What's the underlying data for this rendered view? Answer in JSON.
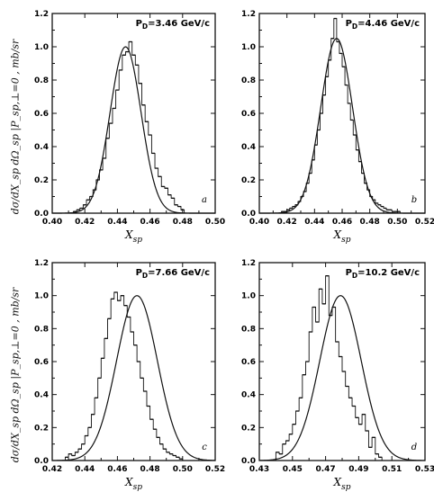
{
  "figure": {
    "y_axis_label_top": "dσ/dX_sp dΩ_sp |P_sp,⊥=0 , mb/sr",
    "y_axis_label_bottom": "dσ/dX_sp dΩ_sp |P_sp,⊥=0 , mb/sr"
  },
  "chart_data": [
    {
      "type": "histogram-with-fit",
      "panel_label": "a",
      "momentum_label": "P_D=3.46 GeV/c",
      "xlabel": "X_sp",
      "xlim": [
        0.4,
        0.5
      ],
      "ylim": [
        0.0,
        1.2
      ],
      "x_ticks": [
        "0.40",
        "0.42",
        "0.44",
        "0.46",
        "0.48",
        "0.50"
      ],
      "y_ticks": [
        "0.0",
        "0.2",
        "0.4",
        "0.6",
        "0.8",
        "1.0",
        "1.2"
      ],
      "fit_gaussian": {
        "mean": 0.445,
        "sigma": 0.0095,
        "amplitude": 1.0
      },
      "histogram": {
        "x_start": 0.413,
        "bin_width": 0.002,
        "values": [
          0.01,
          0.02,
          0.03,
          0.05,
          0.08,
          0.1,
          0.14,
          0.2,
          0.26,
          0.33,
          0.45,
          0.54,
          0.63,
          0.74,
          0.86,
          0.95,
          0.97,
          1.03,
          0.95,
          0.89,
          0.78,
          0.65,
          0.55,
          0.47,
          0.36,
          0.27,
          0.22,
          0.16,
          0.15,
          0.11,
          0.09,
          0.05,
          0.04,
          0.02
        ]
      }
    },
    {
      "type": "histogram-with-fit",
      "panel_label": "b",
      "momentum_label": "P_D=4.46 GeV/c",
      "xlabel": "X_sp",
      "xlim": [
        0.4,
        0.52
      ],
      "ylim": [
        0.0,
        1.2
      ],
      "x_ticks": [
        "0.40",
        "0.42",
        "0.44",
        "0.46",
        "0.48",
        "0.50",
        "0.52"
      ],
      "y_ticks": [
        "0.0",
        "0.2",
        "0.4",
        "0.6",
        "0.8",
        "1.0",
        "1.2"
      ],
      "fit_gaussian": {
        "mean": 0.456,
        "sigma": 0.0115,
        "amplitude": 1.05
      },
      "histogram": {
        "x_start": 0.416,
        "bin_width": 0.002,
        "values": [
          0.01,
          0.01,
          0.02,
          0.03,
          0.04,
          0.05,
          0.07,
          0.1,
          0.13,
          0.18,
          0.24,
          0.32,
          0.41,
          0.5,
          0.6,
          0.71,
          0.82,
          0.92,
          1.05,
          1.17,
          1.03,
          0.96,
          0.88,
          0.77,
          0.66,
          0.56,
          0.47,
          0.38,
          0.31,
          0.24,
          0.18,
          0.14,
          0.1,
          0.08,
          0.06,
          0.05,
          0.04,
          0.03,
          0.02,
          0.02,
          0.01,
          0.01,
          0.01
        ]
      }
    },
    {
      "type": "histogram-with-fit",
      "panel_label": "c",
      "momentum_label": "P_D=7.66 GeV/c",
      "xlabel": "X_sp",
      "xlim": [
        0.42,
        0.52
      ],
      "ylim": [
        0.0,
        1.2
      ],
      "x_ticks": [
        "0.42",
        "0.44",
        "0.46",
        "0.48",
        "0.50",
        "0.52"
      ],
      "y_ticks": [
        "0.0",
        "0.2",
        "0.4",
        "0.6",
        "0.8",
        "1.0",
        "1.2"
      ],
      "fit_gaussian": {
        "mean": 0.472,
        "sigma": 0.0125,
        "amplitude": 1.0
      },
      "histogram": {
        "x_start": 0.428,
        "bin_width": 0.002,
        "values": [
          0.02,
          0.04,
          0.03,
          0.05,
          0.07,
          0.1,
          0.15,
          0.2,
          0.28,
          0.38,
          0.5,
          0.62,
          0.74,
          0.86,
          0.98,
          1.02,
          0.97,
          1.0,
          0.94,
          0.87,
          0.78,
          0.7,
          0.6,
          0.5,
          0.42,
          0.33,
          0.25,
          0.19,
          0.14,
          0.1,
          0.07,
          0.05,
          0.04,
          0.03,
          0.02,
          0.01
        ]
      }
    },
    {
      "type": "histogram-with-fit",
      "panel_label": "d",
      "momentum_label": "P_D=10.2 GeV/c",
      "xlabel": "X_sp",
      "xlim": [
        0.43,
        0.53
      ],
      "ylim": [
        0.0,
        1.2
      ],
      "x_ticks": [
        "0.43",
        "0.45",
        "0.47",
        "0.49",
        "0.51",
        "0.53"
      ],
      "y_ticks": [
        "0.0",
        "0.2",
        "0.4",
        "0.6",
        "0.8",
        "1.0",
        "1.2"
      ],
      "fit_gaussian": {
        "mean": 0.479,
        "sigma": 0.0125,
        "amplitude": 1.0
      },
      "histogram": {
        "x_start": 0.44,
        "bin_width": 0.002,
        "values": [
          0.05,
          0.04,
          0.1,
          0.12,
          0.16,
          0.22,
          0.3,
          0.38,
          0.52,
          0.6,
          0.78,
          0.93,
          0.84,
          1.04,
          0.95,
          1.12,
          0.88,
          0.93,
          0.72,
          0.63,
          0.54,
          0.45,
          0.38,
          0.33,
          0.26,
          0.22,
          0.28,
          0.18,
          0.08,
          0.14,
          0.04,
          0.02
        ]
      }
    }
  ]
}
